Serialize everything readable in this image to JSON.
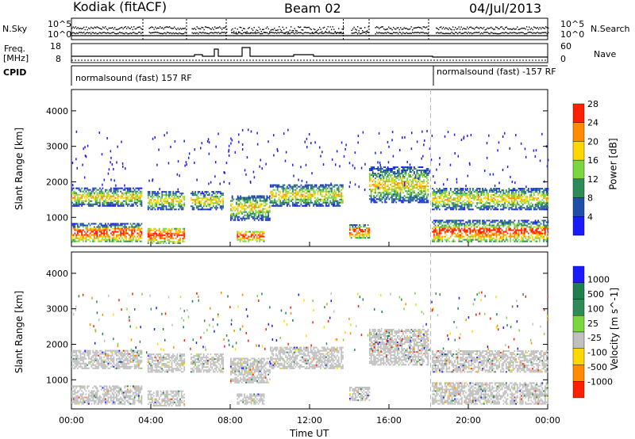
{
  "header": {
    "station": "Kodiak (fitACF)",
    "beam": "Beam 02",
    "date": "04/Jul/2013"
  },
  "status_panels": {
    "nsky_label": "N.Sky",
    "nsearch_label": "N.Search",
    "freq_label": "Freq.",
    "freq_unit": "[MHz]",
    "nave_label": "Nave",
    "cpid_label": "CPID",
    "nsky_ticks": [
      "10^5",
      "10^0"
    ],
    "nsearch_ticks": [
      "10^5",
      "10^0"
    ],
    "freq_ticks": [
      "18",
      "8"
    ],
    "nave_ticks": [
      "60",
      "0"
    ],
    "cpid_left": "normalsound (fast) 157 RF",
    "cpid_right": "normalsound (fast) -157 RF"
  },
  "chart_data": [
    {
      "type": "heatmap",
      "title": "",
      "xlabel": "",
      "ylabel": "Slant Range [km]",
      "xlim": [
        "00:00",
        "24:00"
      ],
      "ylim": [
        180,
        4600
      ],
      "y_ticks": [
        1000,
        2000,
        3000,
        4000
      ],
      "colorbar": {
        "label": "Power [dB]",
        "ticks": [
          4,
          8,
          12,
          16,
          20,
          24,
          28
        ],
        "colors": [
          "#1a1aff",
          "#1f4fa8",
          "#2e8b57",
          "#7cd63f",
          "#ffd700",
          "#ff8c00",
          "#ff2000"
        ]
      },
      "echo_bands": [
        {
          "t_start": "00:00",
          "t_end": "03:30",
          "range_km": [
            1300,
            1800
          ]
        },
        {
          "t_start": "00:00",
          "t_end": "03:30",
          "range_km": [
            300,
            800
          ]
        },
        {
          "t_start": "03:50",
          "t_end": "05:40",
          "range_km": [
            1200,
            1700
          ]
        },
        {
          "t_start": "03:50",
          "t_end": "05:40",
          "range_km": [
            250,
            700
          ]
        },
        {
          "t_start": "06:00",
          "t_end": "07:40",
          "range_km": [
            1200,
            1700
          ]
        },
        {
          "t_start": "08:00",
          "t_end": "10:00",
          "range_km": [
            900,
            1600
          ]
        },
        {
          "t_start": "08:20",
          "t_end": "09:40",
          "range_km": [
            300,
            600
          ]
        },
        {
          "t_start": "10:00",
          "t_end": "13:40",
          "range_km": [
            1300,
            1900
          ]
        },
        {
          "t_start": "14:00",
          "t_end": "15:00",
          "range_km": [
            400,
            800
          ]
        },
        {
          "t_start": "15:00",
          "t_end": "18:00",
          "range_km": [
            1400,
            2400
          ]
        },
        {
          "t_start": "18:10",
          "t_end": "24:00",
          "range_km": [
            1200,
            1800
          ]
        },
        {
          "t_start": "18:10",
          "t_end": "24:00",
          "range_km": [
            300,
            900
          ]
        }
      ]
    },
    {
      "type": "heatmap",
      "title": "",
      "xlabel": "Time UT",
      "ylabel": "Slant Range [km]",
      "xlim": [
        "00:00",
        "24:00"
      ],
      "ylim": [
        180,
        4600
      ],
      "x_ticks": [
        "00:00",
        "04:00",
        "08:00",
        "12:00",
        "16:00",
        "20:00",
        "00:00"
      ],
      "y_ticks": [
        1000,
        2000,
        3000,
        4000
      ],
      "colorbar": {
        "label": "Velocity [m s^-1]",
        "ticks": [
          1000,
          500,
          100,
          25,
          -25,
          -100,
          -500,
          -1000
        ],
        "colors": [
          "#1a1aff",
          "#1f7f4f",
          "#2e8b57",
          "#7cd63f",
          "#c0c0c0",
          "#ffd700",
          "#ff8c00",
          "#ff2000"
        ]
      }
    }
  ]
}
